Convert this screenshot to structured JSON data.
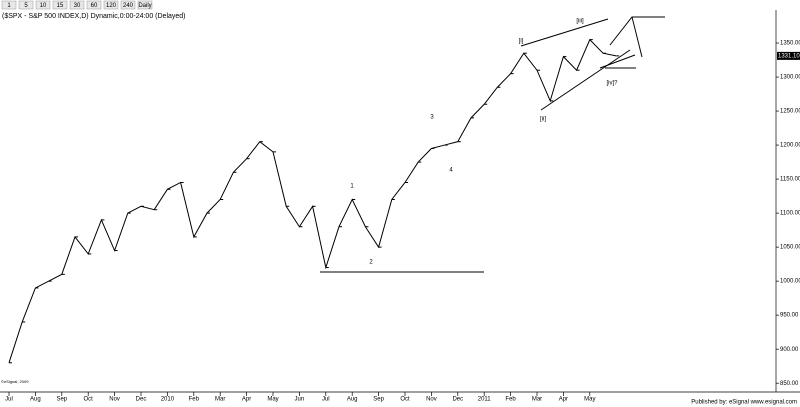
{
  "toolbar": [
    "1",
    "5",
    "10",
    "15",
    "30",
    "60",
    "120",
    "240",
    "Daily"
  ],
  "footer": "Published by: eSignal   www.esignal.com",
  "copyright": "©eSignal, 2009",
  "chart_data": {
    "type": "line",
    "title": "($SPX - S&P 500 INDEX,D) Dynamic,0:00-24:00 (Delayed)",
    "categories": [
      "Jul",
      null,
      "Aug",
      null,
      "Sep",
      null,
      "Oct",
      null,
      "Nov",
      null,
      "Dec",
      null,
      "2010",
      null,
      "Feb",
      null,
      "Mar",
      null,
      "Apr",
      null,
      "May",
      null,
      "Jun",
      null,
      "Jul",
      null,
      "Aug",
      null,
      "Sep",
      null,
      "Oct",
      null,
      "Nov",
      null,
      "Dec",
      null,
      "2011",
      null,
      "Feb",
      null,
      "Mar",
      null,
      "Apr",
      null,
      "May",
      null,
      null
    ],
    "values": [
      880,
      940,
      990,
      1000,
      1010,
      1065,
      1040,
      1090,
      1045,
      1100,
      1110,
      1105,
      1135,
      1145,
      1065,
      1100,
      1120,
      1160,
      1180,
      1205,
      1190,
      1110,
      1080,
      1110,
      1020,
      1080,
      1120,
      1080,
      1050,
      1120,
      1145,
      1175,
      1195,
      1200,
      1205,
      1240,
      1260,
      1285,
      1305,
      1335,
      1310,
      1265,
      1330,
      1310,
      1355,
      1335,
      1331.1
    ],
    "value_labels": [
      null,
      null,
      null,
      null,
      null,
      null,
      null,
      null,
      null,
      null,
      null,
      null,
      null,
      null,
      null,
      null,
      null,
      null,
      null,
      null,
      null,
      null,
      null,
      null,
      null,
      null,
      null,
      null,
      null,
      null,
      null,
      null,
      null,
      null,
      null,
      null,
      null,
      null,
      null,
      null,
      null,
      null,
      null,
      null,
      null,
      null,
      "1331.10"
    ],
    "color": "#000000",
    "ylim": [
      840,
      1400
    ],
    "yticks": [
      {
        "value": 850,
        "label": "850.00"
      },
      {
        "value": 900,
        "label": "900.00"
      },
      {
        "value": 950,
        "label": "950.00"
      },
      {
        "value": 1000,
        "label": "1000.00"
      },
      {
        "value": 1050,
        "label": "1050.00"
      },
      {
        "value": 1100,
        "label": "1100.00"
      },
      {
        "value": 1150,
        "label": "1150.00"
      },
      {
        "value": 1200,
        "label": "1200.00"
      },
      {
        "value": 1250,
        "label": "1250.00"
      },
      {
        "value": 1300,
        "label": "1300.00"
      },
      {
        "value": 1350,
        "label": "1350.00"
      }
    ],
    "annotations": [
      "1",
      "2",
      "3",
      "4",
      "[i]",
      "[ii]",
      "[iii]",
      "[iv]?"
    ]
  }
}
